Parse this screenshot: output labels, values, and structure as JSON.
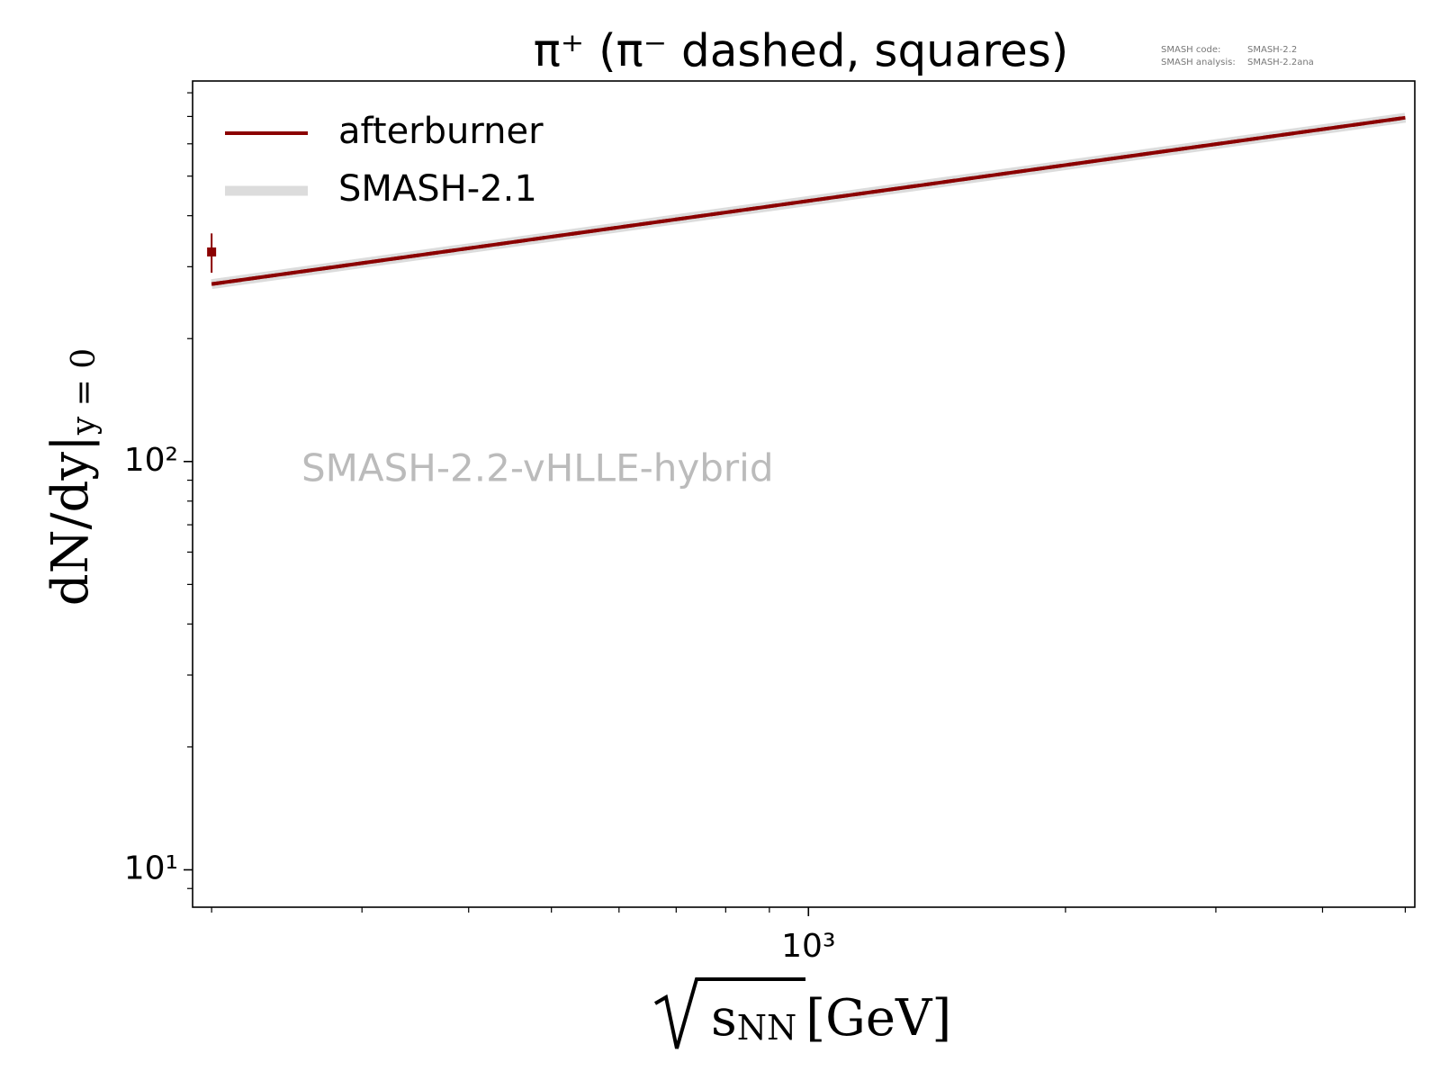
{
  "chart_data": {
    "type": "line",
    "title": "π⁺ (π⁻ dashed, squares)",
    "info": [
      [
        "SMASH code:",
        "SMASH-2.2"
      ],
      [
        "SMASH analysis:",
        "SMASH-2.2ana"
      ]
    ],
    "watermark": "SMASH-2.2-vHLLE-hybrid",
    "ylabel": "dN/dy|",
    "ylabel_sub": "y = 0",
    "xlabel_var": "s",
    "xlabel_sub": "NN",
    "xlabel_unit": "[GeV]",
    "xscale": "log",
    "yscale": "log",
    "xlim": [
      190,
      5130
    ],
    "ylim": [
      8.1,
      855
    ],
    "xticks": [
      {
        "value": 1000,
        "label": "10³"
      }
    ],
    "xminorticks": [
      200,
      300,
      400,
      500,
      600,
      700,
      800,
      900,
      2000,
      3000,
      4000,
      5000
    ],
    "yticks": [
      {
        "value": 10,
        "label": "10¹"
      },
      {
        "value": 100,
        "label": "10²"
      }
    ],
    "yminorticks": [
      9,
      20,
      30,
      40,
      50,
      60,
      70,
      80,
      90,
      200,
      300,
      400,
      500,
      600,
      700,
      800
    ],
    "legend": "upper left",
    "series": [
      {
        "name": "afterburner",
        "color": "#8b0000",
        "linewidth": 4,
        "dash": false,
        "x": [
          200,
          5000
        ],
        "values": [
          272,
          695
        ]
      },
      {
        "color": "#8b0000",
        "linewidth": 4,
        "dash": true,
        "x": [
          200,
          5000
        ],
        "values": [
          272,
          695
        ]
      },
      {
        "name": "SMASH-2.1",
        "color": "#dcdcdc",
        "linewidth": 11,
        "dash": false,
        "x": [
          200,
          5000
        ],
        "values": [
          272,
          695
        ]
      }
    ],
    "points": {
      "marker": "square",
      "color": "#8b0000",
      "x": [
        200
      ],
      "values": [
        326
      ],
      "errors": [
        36
      ]
    }
  }
}
